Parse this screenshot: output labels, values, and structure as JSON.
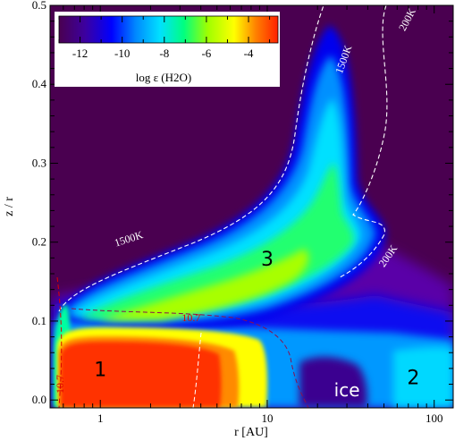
{
  "chart_data": {
    "type": "heatmap",
    "xlabel": "r [AU]",
    "ylabel": "z / r",
    "x_scale": "log",
    "xlim": [
      0.5,
      130
    ],
    "ylim": [
      -0.01,
      0.5
    ],
    "x_ticks": [
      1,
      10,
      100
    ],
    "x_tick_labels": [
      "1",
      "10",
      "100"
    ],
    "y_ticks": [
      0.0,
      0.1,
      0.2,
      0.3,
      0.4,
      0.5
    ],
    "y_tick_labels": [
      "0.0",
      "0.1",
      "0.2",
      "0.3",
      "0.4",
      "0.5"
    ],
    "colorbar": {
      "label": "log ε (H2O)",
      "range": [
        -13,
        -2.6
      ],
      "ticks": [
        -12,
        -10,
        -8,
        -6,
        -4
      ],
      "tick_labels": [
        "-12",
        "-10",
        "-8",
        "-6",
        "-4"
      ],
      "colors": [
        "#4a0050",
        "#3c00a0",
        "#0000ff",
        "#0088ff",
        "#00e0ff",
        "#00ff80",
        "#a0ff00",
        "#ffff00",
        "#ff8000",
        "#ff2000"
      ]
    },
    "region_labels": [
      {
        "text": "1",
        "r": 1.0,
        "z": 0.03
      },
      {
        "text": "3",
        "r": 10.0,
        "z": 0.17
      },
      {
        "text": "ice",
        "r": 30.0,
        "z": 0.005
      },
      {
        "text": "2",
        "r": 75.0,
        "z": 0.02
      }
    ],
    "contours": [
      {
        "label": "1500K",
        "color": "#ffffff",
        "label_positions": [
          {
            "r": 1.5,
            "z": 0.2
          },
          {
            "r": 30.0,
            "z": 0.43
          }
        ]
      },
      {
        "label": "200K",
        "color": "#ffffff",
        "label_positions": [
          {
            "r": 55.0,
            "z": 0.18
          },
          {
            "r": 72.0,
            "z": 0.48
          }
        ]
      },
      {
        "label": "10.7",
        "color": "#e00000",
        "label_positions": [
          {
            "r": 3.5,
            "z": 0.1
          },
          {
            "r": 0.6,
            "z": 0.02
          }
        ]
      }
    ]
  }
}
